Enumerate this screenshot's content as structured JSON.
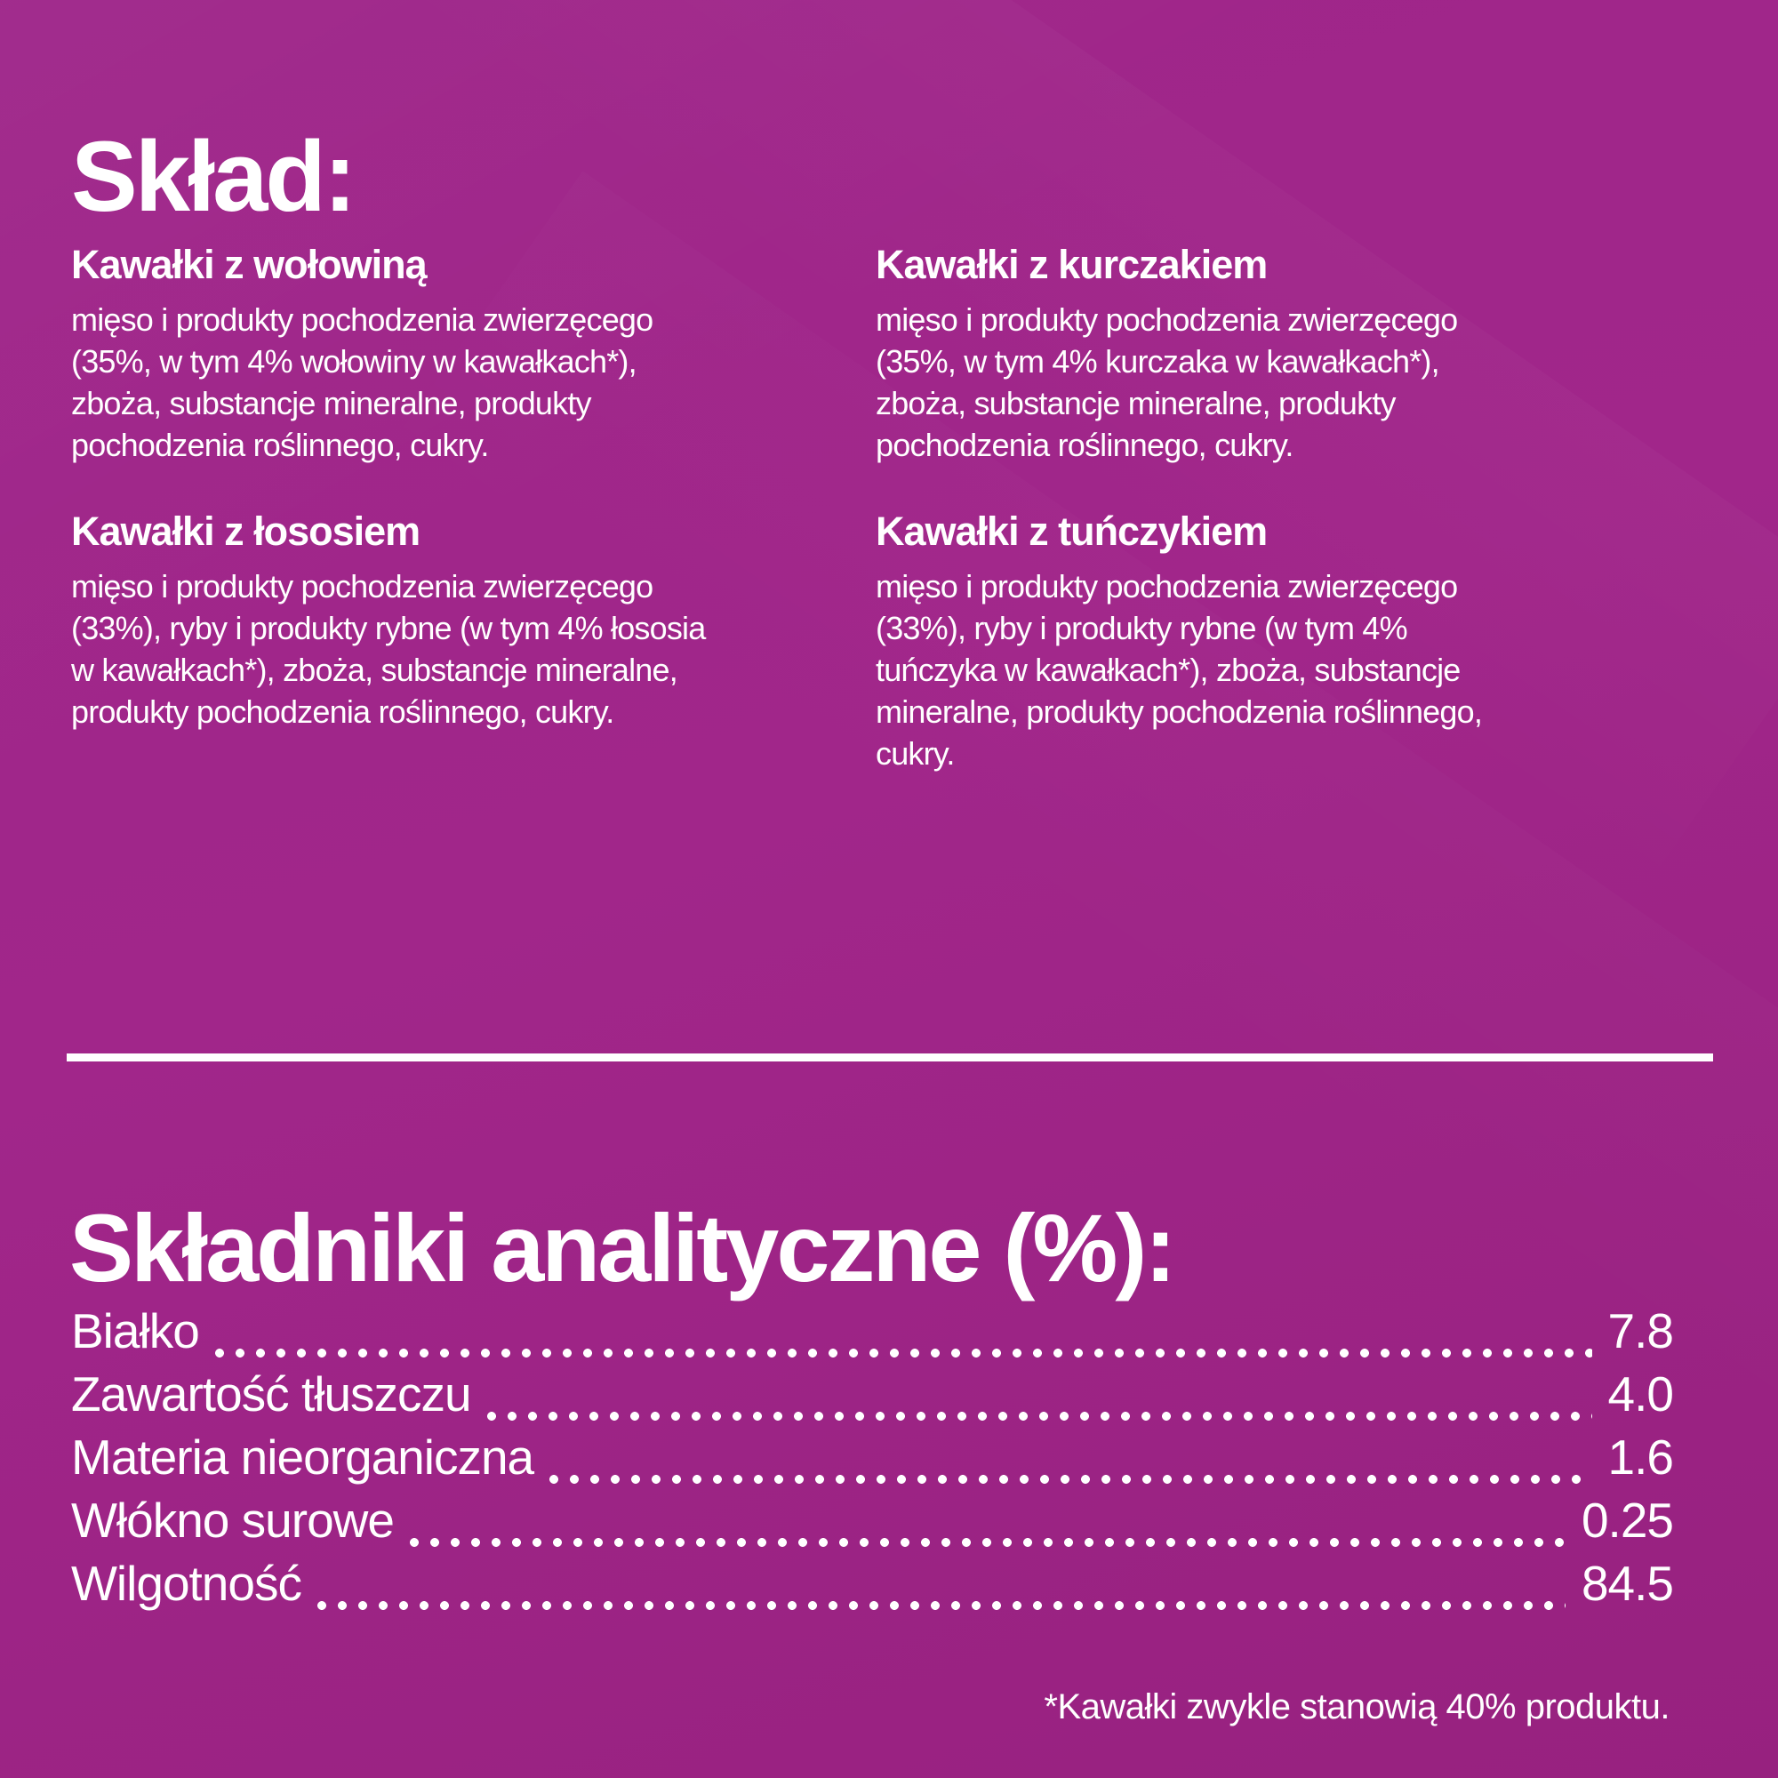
{
  "colors": {
    "background": "#9e2589",
    "text": "#ffffff"
  },
  "composition": {
    "title": "Skład:",
    "sections": [
      {
        "heading": "Kawałki z wołowiną",
        "body": "mięso i produkty pochodzenia zwierzęcego (35%, w tym 4% wołowiny w kawałkach*), zboża, substancje mineralne, produkty pochodzenia roślinnego, cukry."
      },
      {
        "heading": "Kawałki z kurczakiem",
        "body": "mięso i produkty pochodzenia zwierzęcego (35%, w tym 4% kurczaka w kawałkach*), zboża, substancje mineralne, produkty pochodzenia roślinnego, cukry."
      },
      {
        "heading": "Kawałki z łososiem",
        "body": "mięso i produkty pochodzenia zwierzęcego (33%), ryby i produkty rybne (w tym 4% łososia w kawałkach*), zboża, substancje mineralne, produkty pochodzenia roślinnego, cukry."
      },
      {
        "heading": "Kawałki z tuńczykiem",
        "body": "mięso i produkty pochodzenia zwierzęcego (33%), ryby i produkty rybne (w tym 4% tuńczyka w kawałkach*), zboża, substancje mineralne, produkty pochodzenia roślinnego, cukry."
      }
    ]
  },
  "analytical": {
    "title": "Składniki analityczne (%):",
    "rows": [
      {
        "label": "Białko",
        "value": "7.8"
      },
      {
        "label": "Zawartość tłuszczu",
        "value": "4.0"
      },
      {
        "label": "Materia nieorganiczna",
        "value": "1.6"
      },
      {
        "label": "Włókno surowe",
        "value": "0.25"
      },
      {
        "label": "Wilgotność",
        "value": "84.5"
      }
    ]
  },
  "footnote": "*Kawałki zwykle stanowią 40% produktu."
}
